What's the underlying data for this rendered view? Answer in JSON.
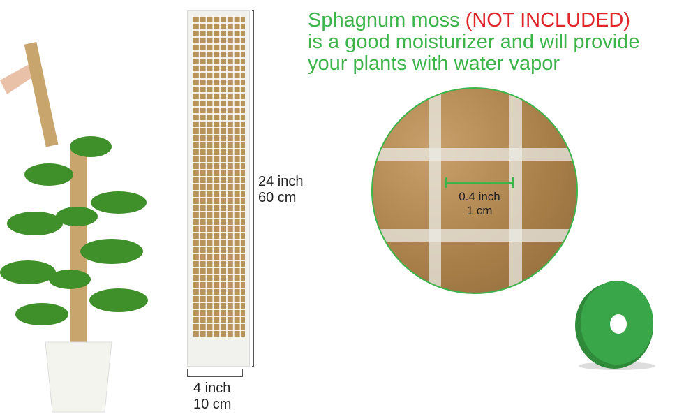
{
  "headline": {
    "part1": "Sphagnum moss ",
    "part2": "(NOT INCLUDED)",
    "line2": "is a good moisturizer and will provide",
    "line3": "your plants with water vapor"
  },
  "dimensions": {
    "height_in": "24 inch",
    "height_cm": "60 cm",
    "width_in": "4 inch",
    "width_cm": "10 cm",
    "cell_in": "0.4 inch",
    "cell_cm": "1 cm"
  },
  "colors": {
    "green": "#3cb44a",
    "red": "#e0262b"
  }
}
